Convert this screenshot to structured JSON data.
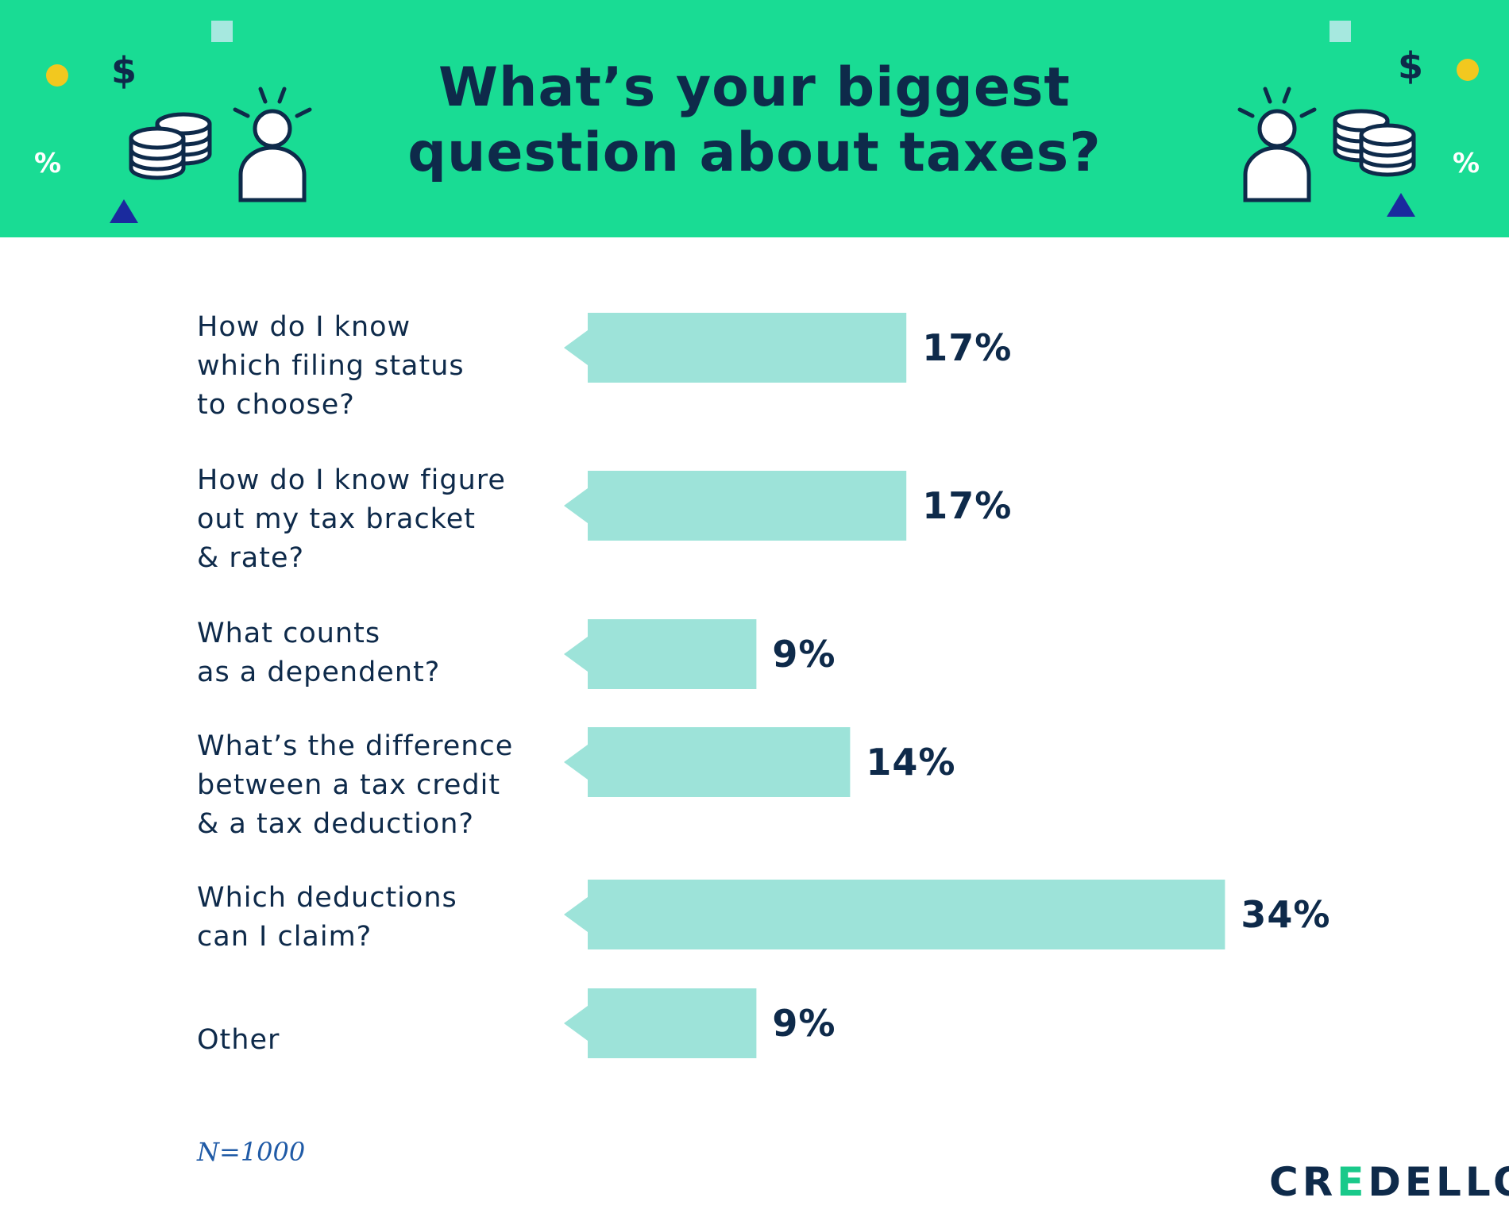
{
  "chart_data": {
    "type": "bar",
    "orientation": "horizontal",
    "title": "What’s your biggest question about taxes?",
    "categories": [
      [
        "How do I know",
        "which filing status",
        "to choose?"
      ],
      [
        "How do I know figure",
        "out my tax bracket",
        "& rate?"
      ],
      [
        "What counts",
        "as a dependent?"
      ],
      [
        "What’s the difference",
        "between a tax credit",
        "& a tax deduction?"
      ],
      [
        "Which deductions",
        "can I claim?"
      ],
      [
        "Other"
      ]
    ],
    "values": [
      17,
      17,
      9,
      14,
      34,
      9
    ],
    "value_labels": [
      "17%",
      "17%",
      "9%",
      "14%",
      "34%",
      "9%"
    ],
    "unit": "%",
    "xlabel": "",
    "ylabel": "",
    "grid": false,
    "legend": "none",
    "bar_color": "#9de3d9"
  },
  "header": {
    "background_color": "#19dc94",
    "left_icons": [
      "dollar-icon",
      "coins-icon",
      "person-idea-icon"
    ],
    "right_icons": [
      "dollar-icon",
      "coins-icon",
      "person-idea-icon"
    ],
    "dollar_symbol": "$",
    "percent_symbol": "%"
  },
  "footnote": "N=1000",
  "brand": {
    "logo_text_before": "CR",
    "logo_text_accent": "E",
    "logo_text_after": "DELLO",
    "accent_color": "#19c98a"
  },
  "colors": {
    "text": "#0e2a4a",
    "bar": "#9de3d9",
    "triangle": "#1a2a9e",
    "dot": "#f2c81f",
    "square": "#a6e8df"
  }
}
